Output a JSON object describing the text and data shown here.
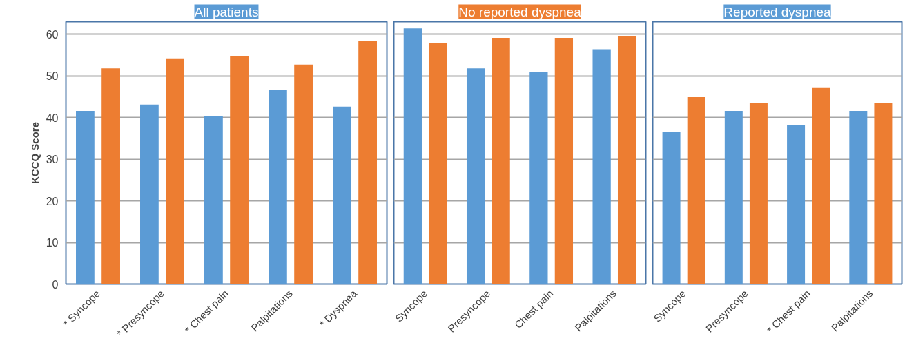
{
  "chart_data": [
    {
      "type": "bar",
      "title": "All patients",
      "ylabel": "KCCQ Score",
      "categories": [
        "* Syncope",
        "* Presyncope",
        "* Chest pain",
        "Palpitations",
        "* Dyspnea"
      ],
      "ylim": [
        0,
        63
      ],
      "yticks": [
        0,
        10,
        20,
        30,
        40,
        50,
        60
      ],
      "grid": "y",
      "series": [
        {
          "color": "#5b9bd5",
          "values": [
            41.6,
            43.1,
            40.3,
            46.7,
            42.6
          ]
        },
        {
          "color": "#ed7d31",
          "values": [
            51.8,
            54.2,
            54.7,
            52.7,
            58.3
          ]
        }
      ]
    },
    {
      "type": "bar",
      "title": "No reported dyspnea",
      "categories": [
        "Syncope",
        "Presyncope",
        "Chest pain",
        "Palpitations"
      ],
      "ylim": [
        0,
        63
      ],
      "yticks": [
        0,
        10,
        20,
        30,
        40,
        50,
        60
      ],
      "grid": "y",
      "tick_labels": "x",
      "series": [
        {
          "color": "#5b9bd5",
          "values": [
            61.4,
            51.8,
            50.9,
            56.4
          ]
        },
        {
          "color": "#ed7d31",
          "values": [
            57.8,
            59.1,
            59.1,
            59.6
          ]
        }
      ]
    },
    {
      "type": "bar",
      "title": "Reported dyspnea",
      "categories": [
        "Syncope",
        "Presyncope",
        "* Chest pain",
        "Palpitations"
      ],
      "ylim": [
        0,
        63
      ],
      "yticks": [
        0,
        10,
        20,
        30,
        40,
        50,
        60
      ],
      "grid": "y",
      "tick_labels": "x",
      "series": [
        {
          "color": "#5b9bd5",
          "values": [
            36.5,
            41.6,
            38.3,
            41.6
          ]
        },
        {
          "color": "#ed7d31",
          "values": [
            44.9,
            43.4,
            47.1,
            43.4
          ]
        }
      ]
    }
  ]
}
